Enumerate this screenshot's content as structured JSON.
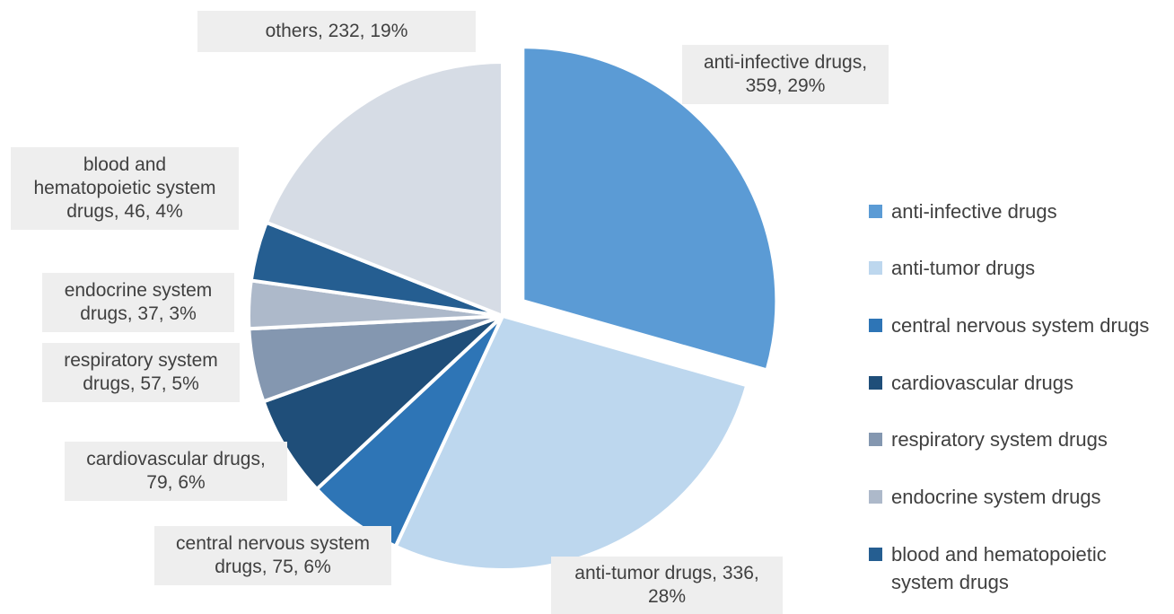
{
  "chart_data": {
    "type": "pie",
    "title": "",
    "slices": [
      {
        "label": "anti-infective drugs",
        "value": 359,
        "percent": "29%",
        "color": "#5b9bd5",
        "data_label": [
          "anti-infective drugs,",
          "359, 29%"
        ],
        "exploded": true
      },
      {
        "label": "anti-tumor drugs",
        "value": 336,
        "percent": "28%",
        "color": "#bdd7ee",
        "data_label": [
          "anti-tumor drugs, 336,",
          "28%"
        ],
        "exploded": false
      },
      {
        "label": "central nervous system drugs",
        "value": 75,
        "percent": "6%",
        "color": "#2e75b6",
        "data_label": [
          "central nervous system",
          "drugs, 75, 6%"
        ],
        "exploded": false
      },
      {
        "label": "cardiovascular drugs",
        "value": 79,
        "percent": "6%",
        "color": "#1f4e79",
        "data_label": [
          "cardiovascular drugs,",
          "79, 6%"
        ],
        "exploded": false
      },
      {
        "label": "respiratory system drugs",
        "value": 57,
        "percent": "5%",
        "color": "#8497b0",
        "data_label": [
          "respiratory system",
          "drugs, 57, 5%"
        ],
        "exploded": false
      },
      {
        "label": "endocrine system drugs",
        "value": 37,
        "percent": "3%",
        "color": "#adb9ca",
        "data_label": [
          "endocrine system",
          "drugs, 37, 3%"
        ],
        "exploded": false
      },
      {
        "label": "blood and hematopoietic system drugs",
        "value": 46,
        "percent": "4%",
        "color": "#255e91",
        "data_label": [
          "blood and",
          "hematopoietic system",
          "drugs, 46, 4%"
        ],
        "exploded": false
      },
      {
        "label": "others",
        "value": 232,
        "percent": "19%",
        "color": "#d6dce5",
        "data_label": [
          "others, 232, 19%"
        ],
        "exploded": false
      }
    ],
    "legend": {
      "placement": "right",
      "entries": [
        {
          "label": "anti-infective drugs",
          "color": "#5b9bd5"
        },
        {
          "label": "anti-tumor drugs",
          "color": "#bdd7ee"
        },
        {
          "label": "central nervous system drugs",
          "color": "#2e75b6"
        },
        {
          "label": "cardiovascular drugs",
          "color": "#1f4e79"
        },
        {
          "label": "respiratory system drugs",
          "color": "#8497b0"
        },
        {
          "label": "endocrine system drugs",
          "color": "#adb9ca"
        },
        {
          "label": "blood and hematopoietic system drugs",
          "color": "#255e91"
        }
      ]
    }
  }
}
